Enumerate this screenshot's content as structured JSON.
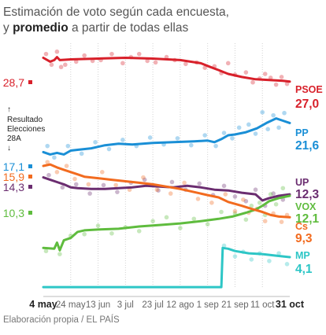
{
  "title": {
    "line1": "Estimación de voto según cada encuesta,",
    "line2_pre": "y ",
    "line2_bold": "promedio",
    "line2_post": " a partir de todas ellas"
  },
  "annotation": {
    "line1": "Resultado",
    "line2": "Elecciones",
    "line3": "28A"
  },
  "footer": "Elaboración propia / EL PAÍS",
  "chart_data": {
    "type": "line",
    "x_ticks": [
      "4 may",
      "24 may",
      "13 jun",
      "3 jul",
      "23 jul",
      "12 ago",
      "1 sep",
      "21 sep",
      "11 oct",
      "31 oct"
    ],
    "x_range": [
      0,
      180
    ],
    "y_range": [
      0,
      32
    ],
    "grid": "vertical dotted",
    "series": [
      {
        "name": "PSOE",
        "color": "#d8202a",
        "result": 28.7,
        "result_label": "28,7",
        "final_label": "27,0",
        "avg": [
          [
            0,
            30.1
          ],
          [
            5,
            29.6
          ],
          [
            8,
            29.8
          ],
          [
            10,
            30.2
          ],
          [
            12,
            29.8
          ],
          [
            20,
            29.9
          ],
          [
            40,
            30.0
          ],
          [
            60,
            30.1
          ],
          [
            80,
            30.0
          ],
          [
            100,
            29.8
          ],
          [
            115,
            29.4
          ],
          [
            122,
            28.9
          ],
          [
            128,
            28.5
          ],
          [
            135,
            28.0
          ],
          [
            145,
            27.6
          ],
          [
            155,
            27.3
          ],
          [
            165,
            27.2
          ],
          [
            175,
            27.1
          ],
          [
            180,
            27.0
          ]
        ],
        "polls": [
          [
            2,
            30.6
          ],
          [
            6,
            29.2
          ],
          [
            10,
            30.9
          ],
          [
            13,
            28.9
          ],
          [
            16,
            29.2
          ],
          [
            24,
            29.6
          ],
          [
            30,
            30.4
          ],
          [
            36,
            29.7
          ],
          [
            42,
            29.8
          ],
          [
            50,
            30.6
          ],
          [
            58,
            29.4
          ],
          [
            64,
            30.2
          ],
          [
            70,
            30.6
          ],
          [
            76,
            29.7
          ],
          [
            82,
            29.5
          ],
          [
            90,
            30.2
          ],
          [
            96,
            29.8
          ],
          [
            104,
            29.3
          ],
          [
            112,
            29.5
          ],
          [
            118,
            28.8
          ],
          [
            125,
            29.0
          ],
          [
            130,
            28.1
          ],
          [
            135,
            29.4
          ],
          [
            140,
            27.9
          ],
          [
            148,
            28.2
          ],
          [
            153,
            26.9
          ],
          [
            158,
            27.4
          ],
          [
            162,
            28.0
          ],
          [
            166,
            27.5
          ],
          [
            170,
            26.6
          ],
          [
            174,
            27.6
          ],
          [
            178,
            26.7
          ]
        ]
      },
      {
        "name": "PP",
        "color": "#1a8fd6",
        "result": 17.1,
        "result_label": "17,1",
        "final_label": "21,6",
        "avg": [
          [
            0,
            17.8
          ],
          [
            5,
            17.5
          ],
          [
            10,
            17.7
          ],
          [
            15,
            17.5
          ],
          [
            20,
            18.0
          ],
          [
            25,
            18.1
          ],
          [
            35,
            18.3
          ],
          [
            45,
            18.7
          ],
          [
            55,
            18.9
          ],
          [
            65,
            18.8
          ],
          [
            80,
            19.0
          ],
          [
            95,
            19.1
          ],
          [
            110,
            19.2
          ],
          [
            120,
            19.3
          ],
          [
            125,
            19.1
          ],
          [
            130,
            19.5
          ],
          [
            135,
            20.0
          ],
          [
            140,
            20.1
          ],
          [
            148,
            20.4
          ],
          [
            156,
            20.9
          ],
          [
            163,
            21.6
          ],
          [
            170,
            22.2
          ],
          [
            175,
            21.9
          ],
          [
            180,
            21.6
          ]
        ],
        "polls": [
          [
            3,
            18.6
          ],
          [
            8,
            17.1
          ],
          [
            18,
            18.6
          ],
          [
            28,
            17.6
          ],
          [
            38,
            19.1
          ],
          [
            48,
            18.2
          ],
          [
            58,
            19.4
          ],
          [
            68,
            18.6
          ],
          [
            78,
            19.7
          ],
          [
            88,
            18.8
          ],
          [
            98,
            19.6
          ],
          [
            108,
            18.7
          ],
          [
            118,
            20.0
          ],
          [
            126,
            18.6
          ],
          [
            132,
            20.3
          ],
          [
            138,
            19.6
          ],
          [
            143,
            21.0
          ],
          [
            150,
            21.4
          ],
          [
            155,
            20.2
          ],
          [
            160,
            23.0
          ],
          [
            164,
            20.8
          ],
          [
            168,
            22.6
          ],
          [
            172,
            21.0
          ],
          [
            176,
            22.9
          ]
        ]
      },
      {
        "name": "UP",
        "color": "#6b2d70",
        "result": 14.3,
        "result_label": "14,3",
        "final_label": "12,3",
        "avg": [
          [
            0,
            14.5
          ],
          [
            5,
            14.2
          ],
          [
            10,
            13.9
          ],
          [
            15,
            13.6
          ],
          [
            20,
            13.2
          ],
          [
            25,
            13.1
          ],
          [
            35,
            13.0
          ],
          [
            45,
            13.0
          ],
          [
            55,
            13.1
          ],
          [
            65,
            13.2
          ],
          [
            75,
            13.4
          ],
          [
            85,
            13.3
          ],
          [
            95,
            13.2
          ],
          [
            105,
            13.4
          ],
          [
            115,
            13.2
          ],
          [
            125,
            12.9
          ],
          [
            135,
            12.8
          ],
          [
            145,
            12.5
          ],
          [
            155,
            12.3
          ],
          [
            160,
            11.5
          ],
          [
            165,
            11.8
          ],
          [
            172,
            12.1
          ],
          [
            180,
            12.3
          ]
        ],
        "polls": [
          [
            4,
            14.8
          ],
          [
            14,
            13.2
          ],
          [
            24,
            13.6
          ],
          [
            34,
            12.4
          ],
          [
            44,
            13.5
          ],
          [
            54,
            12.6
          ],
          [
            64,
            13.8
          ],
          [
            74,
            14.2
          ],
          [
            84,
            12.8
          ],
          [
            94,
            13.9
          ],
          [
            104,
            12.9
          ],
          [
            114,
            13.7
          ],
          [
            124,
            12.2
          ],
          [
            132,
            13.4
          ],
          [
            140,
            12.0
          ],
          [
            148,
            11.4
          ],
          [
            155,
            12.9
          ],
          [
            162,
            10.8
          ],
          [
            168,
            12.4
          ],
          [
            175,
            11.6
          ]
        ]
      },
      {
        "name": "VOX",
        "color": "#5fbc3e",
        "result": 10.3,
        "result_label": "10,3",
        "final_label": "12,1",
        "avg": [
          [
            0,
            5.3
          ],
          [
            8,
            5.2
          ],
          [
            10,
            6.0
          ],
          [
            12,
            5.0
          ],
          [
            15,
            6.3
          ],
          [
            20,
            6.6
          ],
          [
            25,
            7.4
          ],
          [
            30,
            7.6
          ],
          [
            40,
            7.7
          ],
          [
            55,
            7.8
          ],
          [
            70,
            8.1
          ],
          [
            85,
            8.3
          ],
          [
            100,
            8.5
          ],
          [
            115,
            8.8
          ],
          [
            128,
            9.1
          ],
          [
            138,
            9.4
          ],
          [
            148,
            9.9
          ],
          [
            155,
            10.3
          ],
          [
            160,
            10.8
          ],
          [
            165,
            11.4
          ],
          [
            172,
            11.8
          ],
          [
            180,
            12.1
          ]
        ],
        "polls": [
          [
            2,
            4.9
          ],
          [
            12,
            4.5
          ],
          [
            20,
            6.9
          ],
          [
            30,
            7.1
          ],
          [
            40,
            8.2
          ],
          [
            50,
            7.2
          ],
          [
            60,
            8.0
          ],
          [
            70,
            7.5
          ],
          [
            80,
            8.8
          ],
          [
            90,
            9.3
          ],
          [
            100,
            7.9
          ],
          [
            110,
            9.1
          ],
          [
            120,
            8.4
          ],
          [
            130,
            10.0
          ],
          [
            140,
            9.8
          ],
          [
            148,
            9.0
          ],
          [
            152,
            10.8
          ],
          [
            158,
            11.2
          ],
          [
            162,
            9.6
          ],
          [
            166,
            12.3
          ],
          [
            170,
            11.0
          ],
          [
            175,
            13.1
          ]
        ]
      },
      {
        "name": "Cs",
        "color": "#f26b1f",
        "result": 15.9,
        "result_label": "15,9",
        "final_label": "9,3",
        "avg": [
          [
            0,
            16.0
          ],
          [
            5,
            16.2
          ],
          [
            10,
            15.8
          ],
          [
            15,
            15.5
          ],
          [
            20,
            15.2
          ],
          [
            25,
            14.9
          ],
          [
            30,
            14.6
          ],
          [
            40,
            14.4
          ],
          [
            50,
            14.2
          ],
          [
            60,
            14.0
          ],
          [
            70,
            13.8
          ],
          [
            80,
            13.6
          ],
          [
            90,
            13.3
          ],
          [
            100,
            13.0
          ],
          [
            110,
            12.6
          ],
          [
            120,
            12.2
          ],
          [
            128,
            11.9
          ],
          [
            135,
            11.3
          ],
          [
            145,
            10.8
          ],
          [
            152,
            10.4
          ],
          [
            160,
            10.0
          ],
          [
            166,
            9.6
          ],
          [
            172,
            9.4
          ],
          [
            180,
            9.3
          ]
        ],
        "polls": [
          [
            3,
            16.5
          ],
          [
            10,
            15.2
          ],
          [
            17,
            16.0
          ],
          [
            23,
            14.3
          ],
          [
            33,
            13.6
          ],
          [
            43,
            15.2
          ],
          [
            53,
            13.5
          ],
          [
            63,
            12.9
          ],
          [
            73,
            14.5
          ],
          [
            83,
            12.9
          ],
          [
            93,
            12.4
          ],
          [
            103,
            13.8
          ],
          [
            113,
            11.7
          ],
          [
            123,
            11.2
          ],
          [
            133,
            12.3
          ],
          [
            140,
            10.1
          ],
          [
            146,
            11.6
          ],
          [
            150,
            9.9
          ],
          [
            156,
            10.4
          ],
          [
            162,
            8.8
          ],
          [
            168,
            9.8
          ],
          [
            174,
            8.7
          ],
          [
            178,
            9.6
          ]
        ]
      },
      {
        "name": "MP",
        "color": "#2dc6c6",
        "result": null,
        "result_label": "",
        "final_label": "4,1",
        "avg": [
          [
            0,
            0.2
          ],
          [
            130,
            0.2
          ],
          [
            131,
            5.3
          ],
          [
            135,
            5.2
          ],
          [
            140,
            4.9
          ],
          [
            150,
            4.6
          ],
          [
            160,
            4.5
          ],
          [
            170,
            4.3
          ],
          [
            180,
            4.1
          ]
        ],
        "polls": [
          [
            132,
            5.6
          ],
          [
            140,
            4.2
          ],
          [
            146,
            4.8
          ],
          [
            152,
            3.8
          ],
          [
            158,
            4.6
          ],
          [
            165,
            3.6
          ],
          [
            172,
            4.6
          ],
          [
            178,
            3.2
          ]
        ]
      }
    ]
  }
}
